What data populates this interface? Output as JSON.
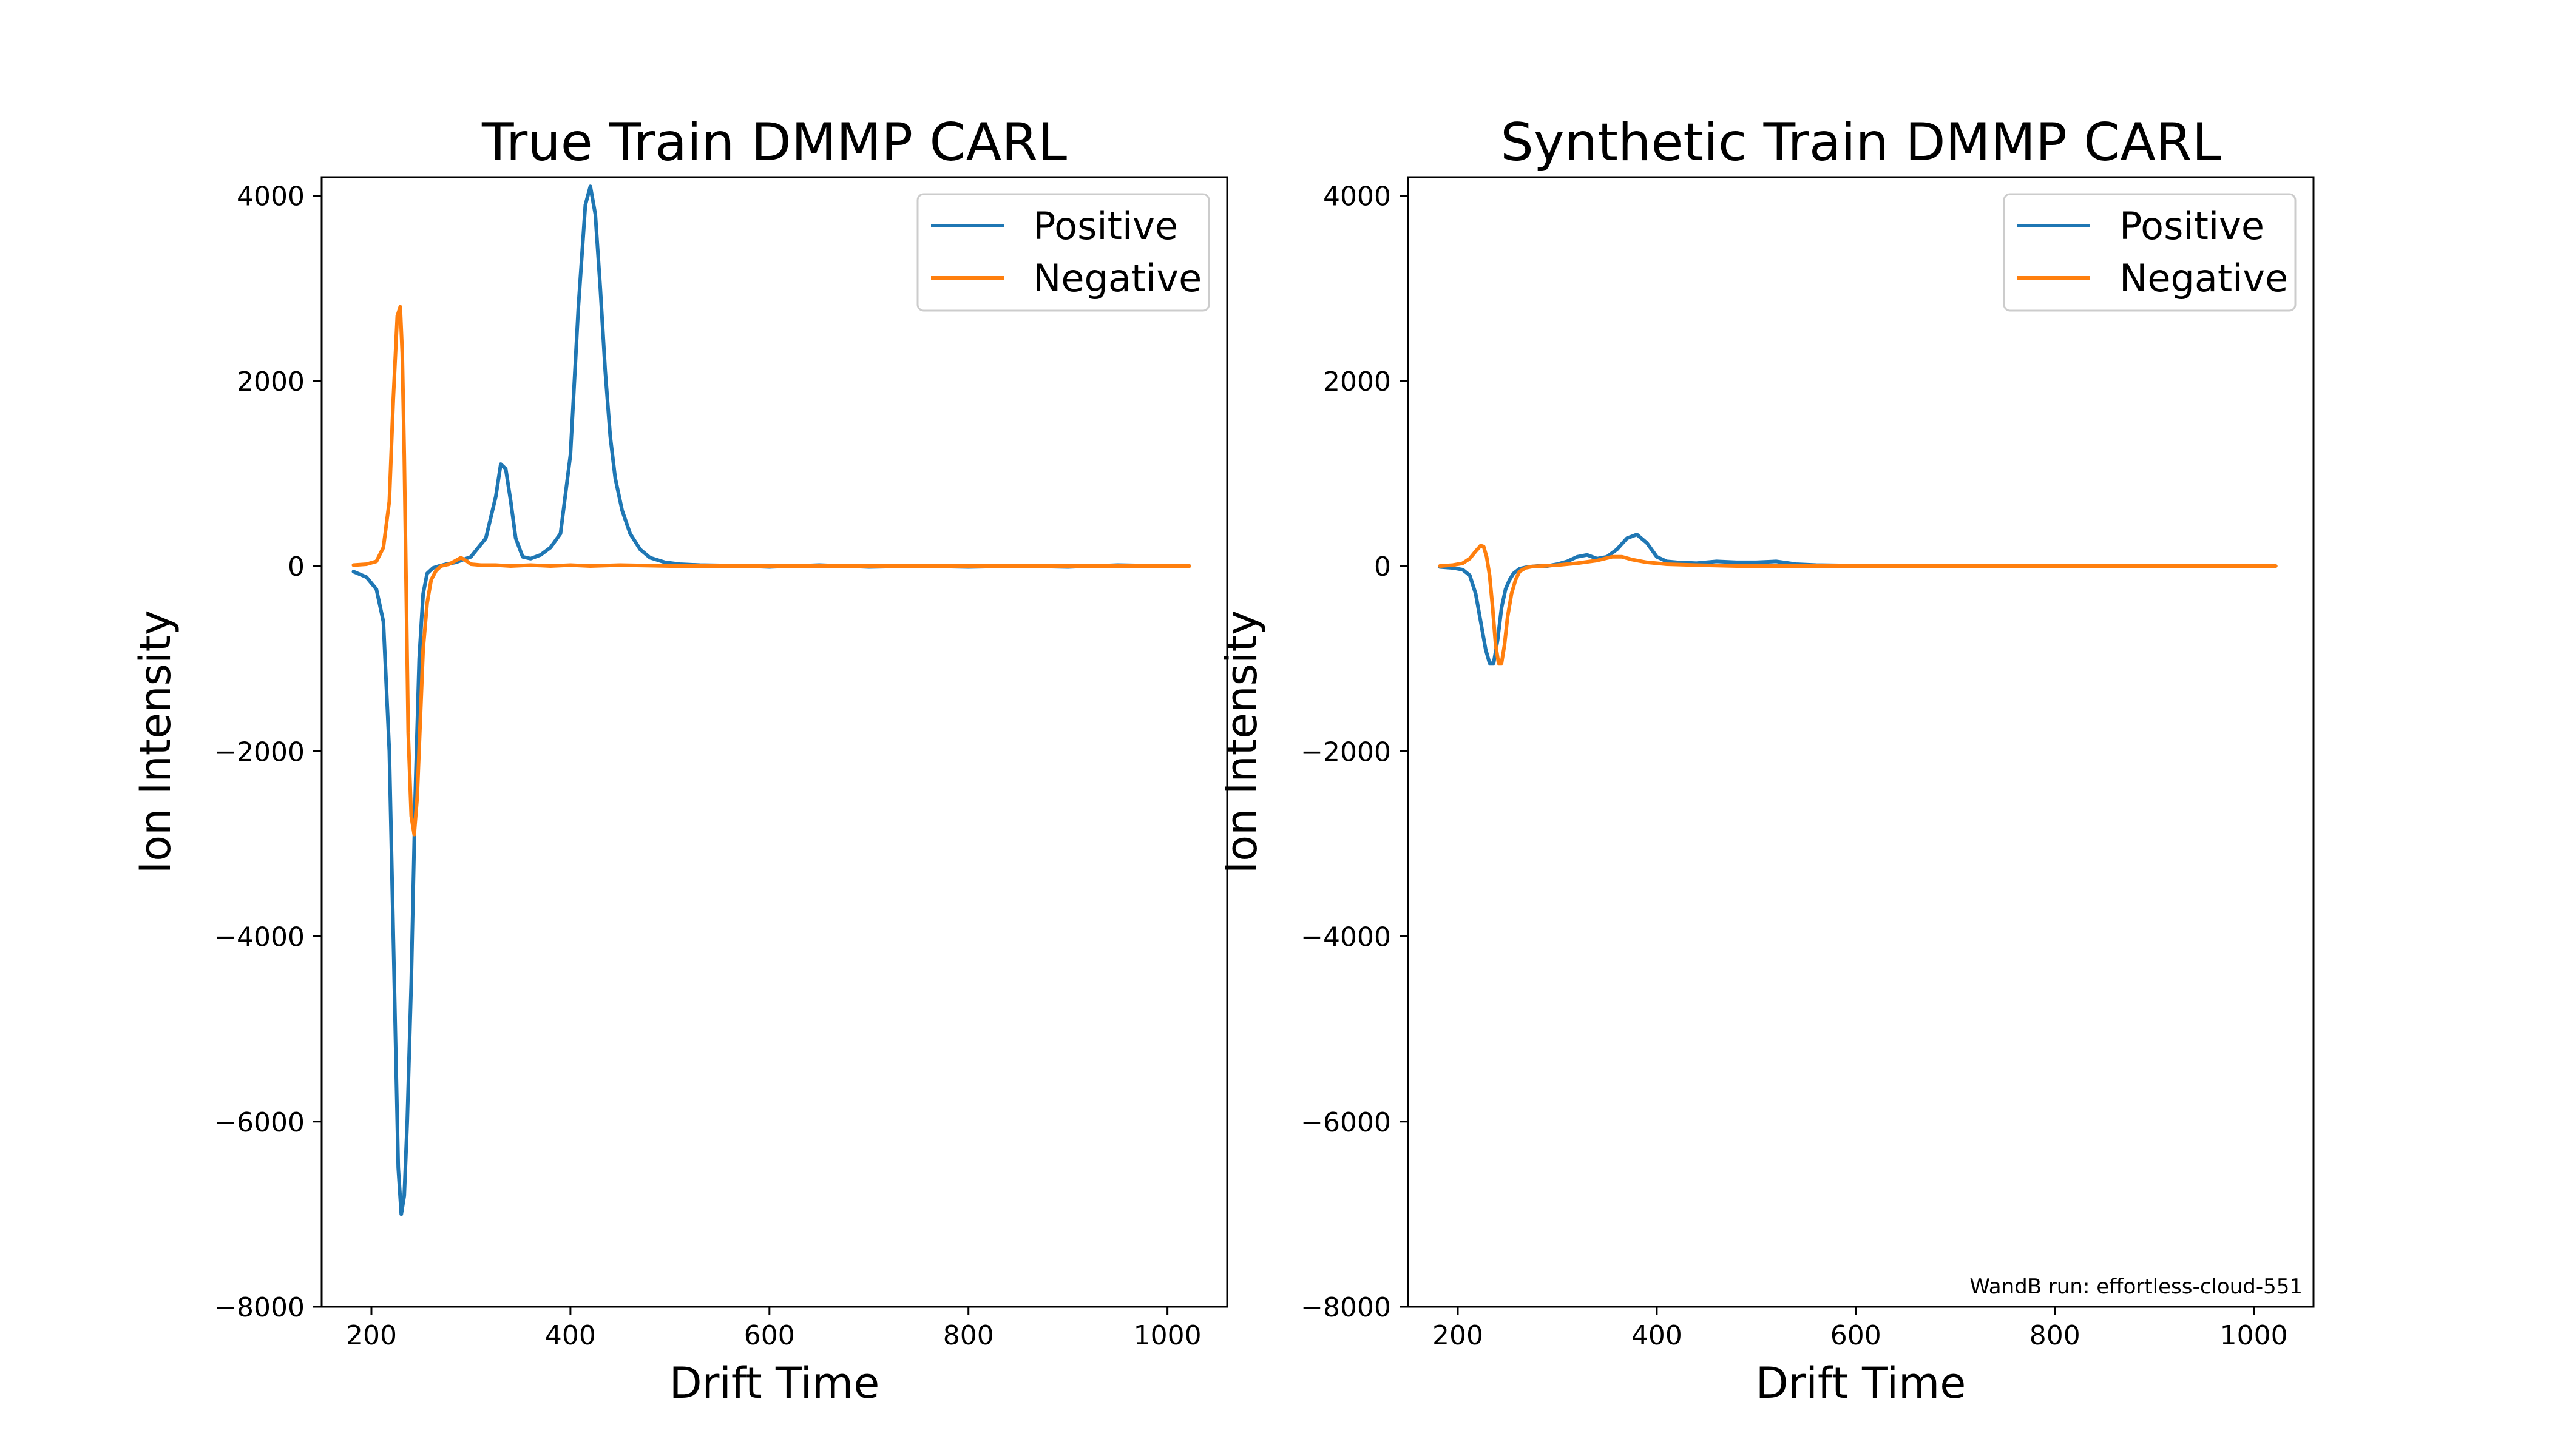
{
  "chart_data": [
    {
      "type": "line",
      "title": "True Train DMMP CARL",
      "xlabel": "Drift Time",
      "ylabel": "Ion Intensity",
      "xlim": [
        150,
        1060
      ],
      "ylim": [
        -8000,
        4200
      ],
      "xticks": [
        200,
        400,
        600,
        800,
        1000
      ],
      "yticks": [
        -8000,
        -6000,
        -4000,
        -2000,
        0,
        2000,
        4000
      ],
      "grid": false,
      "legend_position": "top-right",
      "series": [
        {
          "name": "Positive",
          "color": "#1f77b4",
          "x": [
            182,
            195,
            205,
            212,
            218,
            223,
            227,
            230,
            233,
            236,
            240,
            244,
            248,
            252,
            256,
            262,
            268,
            275,
            285,
            300,
            315,
            325,
            330,
            335,
            340,
            345,
            352,
            360,
            370,
            380,
            390,
            400,
            408,
            415,
            420,
            425,
            430,
            435,
            440,
            445,
            452,
            460,
            470,
            480,
            495,
            510,
            530,
            560,
            600,
            650,
            700,
            750,
            800,
            850,
            900,
            950,
            1000,
            1022
          ],
          "y": [
            -60,
            -120,
            -250,
            -600,
            -2000,
            -4500,
            -6500,
            -7000,
            -6800,
            -6000,
            -4500,
            -2500,
            -1000,
            -300,
            -80,
            -20,
            0,
            20,
            40,
            100,
            300,
            750,
            1100,
            1050,
            700,
            300,
            100,
            80,
            120,
            200,
            350,
            1200,
            2800,
            3900,
            4100,
            3800,
            3000,
            2100,
            1400,
            950,
            600,
            350,
            180,
            90,
            40,
            20,
            10,
            5,
            -10,
            10,
            -10,
            0,
            -10,
            0,
            -10,
            10,
            0,
            0
          ]
        },
        {
          "name": "Negative",
          "color": "#ff7f0e",
          "x": [
            182,
            195,
            205,
            212,
            218,
            222,
            226,
            229,
            231,
            233,
            235,
            237,
            240,
            243,
            246,
            249,
            252,
            256,
            260,
            265,
            270,
            278,
            285,
            290,
            295,
            300,
            310,
            325,
            340,
            360,
            380,
            400,
            420,
            450,
            500,
            550,
            600,
            650,
            700,
            750,
            800,
            850,
            900,
            950,
            1000,
            1022
          ],
          "y": [
            10,
            20,
            50,
            200,
            700,
            1800,
            2700,
            2800,
            2300,
            1200,
            -300,
            -1800,
            -2700,
            -2900,
            -2500,
            -1700,
            -900,
            -400,
            -150,
            -50,
            0,
            20,
            60,
            90,
            60,
            20,
            10,
            10,
            0,
            10,
            0,
            10,
            0,
            10,
            0,
            0,
            0,
            0,
            0,
            0,
            0,
            0,
            0,
            0,
            0,
            0
          ]
        }
      ]
    },
    {
      "type": "line",
      "title": "Synthetic Train DMMP CARL",
      "xlabel": "Drift Time",
      "ylabel": "Ion Intensity",
      "xlim": [
        150,
        1060
      ],
      "ylim": [
        -8000,
        4200
      ],
      "xticks": [
        200,
        400,
        600,
        800,
        1000
      ],
      "yticks": [
        -8000,
        -6000,
        -4000,
        -2000,
        0,
        2000,
        4000
      ],
      "grid": false,
      "legend_position": "top-right",
      "annotation": "WandB run: effortless-cloud-551",
      "series": [
        {
          "name": "Positive",
          "color": "#1f77b4",
          "x": [
            182,
            195,
            205,
            212,
            218,
            223,
            228,
            232,
            236,
            240,
            244,
            248,
            252,
            256,
            262,
            270,
            280,
            290,
            300,
            310,
            320,
            330,
            340,
            350,
            360,
            370,
            380,
            390,
            400,
            410,
            420,
            440,
            460,
            480,
            500,
            520,
            540,
            560,
            600,
            650,
            700,
            800,
            900,
            1000,
            1022
          ],
          "y": [
            -10,
            -20,
            -40,
            -100,
            -300,
            -600,
            -900,
            -1050,
            -1050,
            -800,
            -450,
            -250,
            -150,
            -80,
            -30,
            -10,
            0,
            0,
            20,
            50,
            100,
            120,
            80,
            100,
            180,
            300,
            340,
            250,
            100,
            50,
            40,
            30,
            50,
            40,
            40,
            50,
            20,
            10,
            5,
            0,
            0,
            0,
            0,
            0,
            0
          ]
        },
        {
          "name": "Negative",
          "color": "#ff7f0e",
          "x": [
            182,
            195,
            205,
            212,
            218,
            223,
            226,
            229,
            232,
            235,
            238,
            241,
            244,
            247,
            250,
            254,
            258,
            262,
            268,
            275,
            285,
            300,
            320,
            340,
            355,
            365,
            375,
            390,
            410,
            440,
            480,
            520,
            560,
            600,
            700,
            800,
            900,
            1000,
            1022
          ],
          "y": [
            0,
            10,
            30,
            80,
            160,
            220,
            210,
            100,
            -100,
            -450,
            -850,
            -1050,
            -1050,
            -850,
            -550,
            -300,
            -150,
            -60,
            -20,
            -5,
            0,
            10,
            30,
            60,
            100,
            100,
            70,
            40,
            20,
            10,
            0,
            0,
            0,
            0,
            0,
            0,
            0,
            0,
            0
          ]
        }
      ]
    }
  ]
}
